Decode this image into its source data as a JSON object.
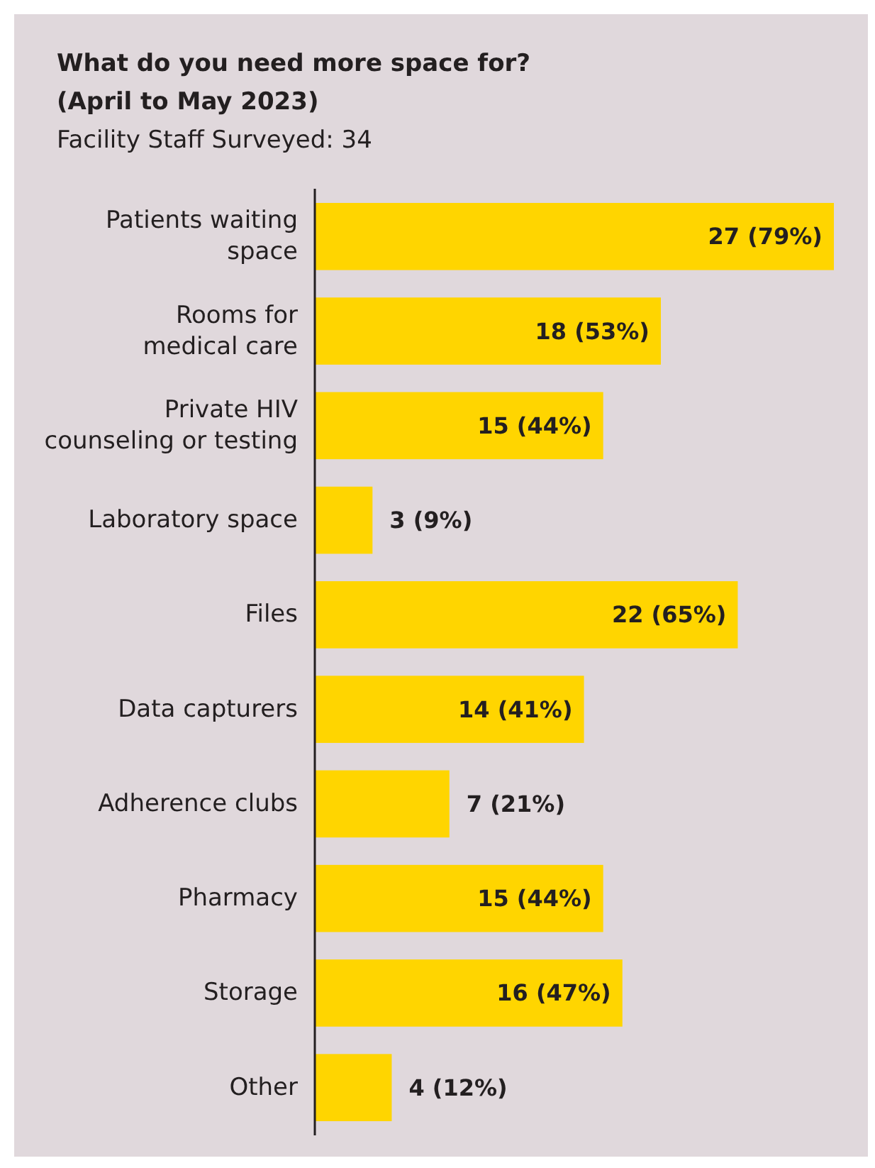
{
  "chart_data": {
    "type": "bar",
    "orientation": "horizontal",
    "title": "What do you need more space for?\n(April to May 2023)",
    "subtitle": "Facility Staff Surveyed: 34",
    "categories": [
      "Patients waiting\nspace",
      "Rooms for\nmedical care",
      "Private HIV\ncounseling or testing",
      "Laboratory space",
      "Files",
      "Data capturers",
      "Adherence clubs",
      "Pharmacy",
      "Storage",
      "Other"
    ],
    "values": [
      27,
      18,
      15,
      3,
      22,
      14,
      7,
      15,
      16,
      4
    ],
    "value_labels": [
      "27 (79%)",
      "18 (53%)",
      "15 (44%)",
      "3 (9%)",
      "22 (65%)",
      "14 (41%)",
      "7 (21%)",
      "15 (44%)",
      "16 (47%)",
      "4 (12%)"
    ],
    "color": "#ffd500"
  }
}
